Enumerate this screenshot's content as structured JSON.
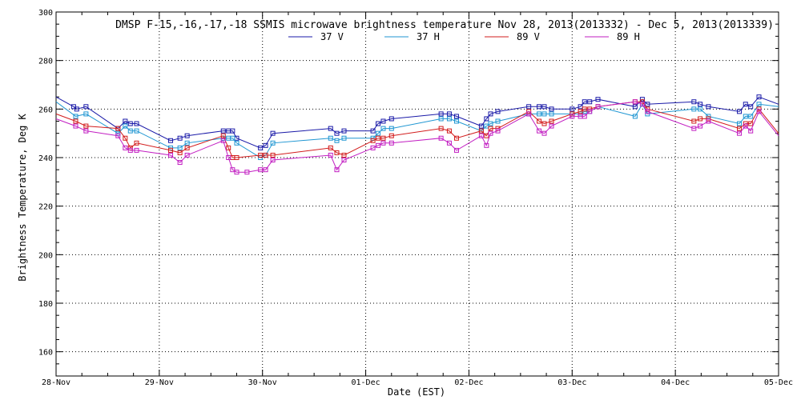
{
  "chart_data": {
    "type": "line",
    "title": "DMSP F-15,-16,-17,-18 SSMIS microwave brightness temperature Nov 28, 2013(2013332) - Dec  5, 2013(2013339)",
    "xlabel": "Date (EST)",
    "ylabel": "Brightness Temperature, Deg K",
    "x_unit": "days since 28-Nov 00:00",
    "xlim": [
      0,
      7
    ],
    "ylim": [
      150,
      300
    ],
    "x_ticks": [
      0,
      1,
      2,
      3,
      4,
      5,
      6,
      7
    ],
    "x_tick_labels": [
      "28-Nov",
      "29-Nov",
      "30-Nov",
      "01-Dec",
      "02-Dec",
      "03-Dec",
      "04-Dec",
      "05-Dec"
    ],
    "y_ticks": [
      160,
      180,
      200,
      220,
      240,
      260,
      280,
      300
    ],
    "y_tick_labels": [
      "160",
      "180",
      "200",
      "220",
      "240",
      "260",
      "280",
      "300"
    ],
    "grid": true,
    "legend_position": "top-center",
    "series": [
      {
        "name": "37 V",
        "color": "#1a1aa8",
        "x": [
          0.0,
          0.17,
          0.2,
          0.29,
          0.6,
          0.67,
          0.72,
          0.78,
          1.11,
          1.2,
          1.27,
          1.62,
          1.67,
          1.71,
          1.75,
          1.98,
          2.03,
          2.1,
          2.66,
          2.72,
          2.79,
          3.07,
          3.12,
          3.17,
          3.25,
          3.73,
          3.81,
          3.88,
          4.12,
          4.17,
          4.21,
          4.28,
          4.58,
          4.68,
          4.73,
          4.8,
          5.0,
          5.08,
          5.12,
          5.17,
          5.25,
          5.61,
          5.68,
          5.73,
          6.18,
          6.24,
          6.32,
          6.62,
          6.68,
          6.73,
          6.81,
          7.0
        ],
        "y": [
          265,
          261,
          260,
          261,
          252,
          255,
          254,
          254,
          247,
          248,
          249,
          251,
          251,
          251,
          248,
          244,
          245,
          250,
          252,
          250,
          251,
          251,
          254,
          255,
          256,
          258,
          258,
          257,
          253,
          256,
          258,
          259,
          261,
          261,
          261,
          260,
          260,
          261,
          263,
          263,
          264,
          261,
          264,
          262,
          263,
          262,
          261,
          259,
          262,
          261,
          265,
          262
        ]
      },
      {
        "name": "37 H",
        "color": "#1f96d2",
        "x": [
          0.0,
          0.19,
          0.29,
          0.6,
          0.67,
          0.72,
          0.78,
          1.11,
          1.2,
          1.27,
          1.62,
          1.67,
          1.71,
          1.75,
          1.98,
          2.03,
          2.1,
          2.66,
          2.72,
          2.79,
          3.07,
          3.12,
          3.17,
          3.25,
          3.73,
          3.81,
          3.88,
          4.12,
          4.17,
          4.21,
          4.28,
          4.58,
          4.68,
          4.73,
          4.8,
          5.0,
          5.08,
          5.12,
          5.17,
          5.25,
          5.61,
          5.68,
          5.73,
          6.18,
          6.24,
          6.32,
          6.62,
          6.68,
          6.73,
          6.81,
          7.0
        ],
        "y": [
          263,
          257,
          258,
          250,
          253,
          251,
          251,
          244,
          244,
          246,
          248,
          248,
          248,
          246,
          240,
          241,
          246,
          248,
          247,
          248,
          248,
          250,
          252,
          252,
          256,
          256,
          255,
          251,
          253,
          254,
          255,
          258,
          258,
          258,
          258,
          258,
          258,
          259,
          259,
          261,
          257,
          262,
          258,
          260,
          260,
          257,
          254,
          257,
          257,
          262,
          261
        ]
      },
      {
        "name": "89 V",
        "color": "#d21c1c",
        "x": [
          0.0,
          0.19,
          0.29,
          0.6,
          0.67,
          0.72,
          0.78,
          1.11,
          1.2,
          1.27,
          1.62,
          1.67,
          1.71,
          1.75,
          1.98,
          2.03,
          2.1,
          2.66,
          2.72,
          2.79,
          3.07,
          3.12,
          3.17,
          3.25,
          3.73,
          3.81,
          3.88,
          4.12,
          4.17,
          4.21,
          4.28,
          4.58,
          4.68,
          4.73,
          4.8,
          5.0,
          5.08,
          5.12,
          5.17,
          5.25,
          5.61,
          5.68,
          5.73,
          6.18,
          6.24,
          6.32,
          6.62,
          6.68,
          6.73,
          6.81,
          7.0
        ],
        "y": [
          258,
          255,
          253,
          252,
          248,
          244,
          246,
          243,
          242,
          244,
          249,
          244,
          240,
          240,
          241,
          241,
          241,
          244,
          242,
          241,
          247,
          248,
          248,
          249,
          252,
          251,
          248,
          251,
          249,
          252,
          252,
          259,
          255,
          254,
          255,
          258,
          259,
          260,
          260,
          261,
          263,
          263,
          260,
          255,
          256,
          256,
          252,
          254,
          254,
          260,
          250
        ]
      },
      {
        "name": "89 H",
        "color": "#c21ec2",
        "x": [
          0.0,
          0.19,
          0.29,
          0.6,
          0.67,
          0.72,
          0.78,
          1.11,
          1.2,
          1.27,
          1.62,
          1.67,
          1.71,
          1.75,
          1.85,
          1.98,
          2.03,
          2.1,
          2.66,
          2.72,
          2.79,
          3.07,
          3.12,
          3.17,
          3.25,
          3.73,
          3.81,
          3.88,
          4.12,
          4.17,
          4.21,
          4.28,
          4.58,
          4.68,
          4.73,
          4.8,
          5.0,
          5.08,
          5.12,
          5.17,
          5.25,
          5.61,
          5.68,
          5.73,
          6.18,
          6.24,
          6.32,
          6.62,
          6.68,
          6.73,
          6.81,
          7.0
        ],
        "y": [
          256,
          253,
          251,
          249,
          244,
          243,
          243,
          241,
          238,
          241,
          247,
          240,
          235,
          234,
          234,
          235,
          235,
          239,
          241,
          235,
          239,
          244,
          245,
          246,
          246,
          248,
          246,
          243,
          249,
          245,
          250,
          251,
          258,
          251,
          250,
          253,
          257,
          257,
          257,
          259,
          261,
          263,
          262,
          259,
          252,
          253,
          255,
          250,
          253,
          251,
          259,
          249
        ]
      }
    ]
  }
}
